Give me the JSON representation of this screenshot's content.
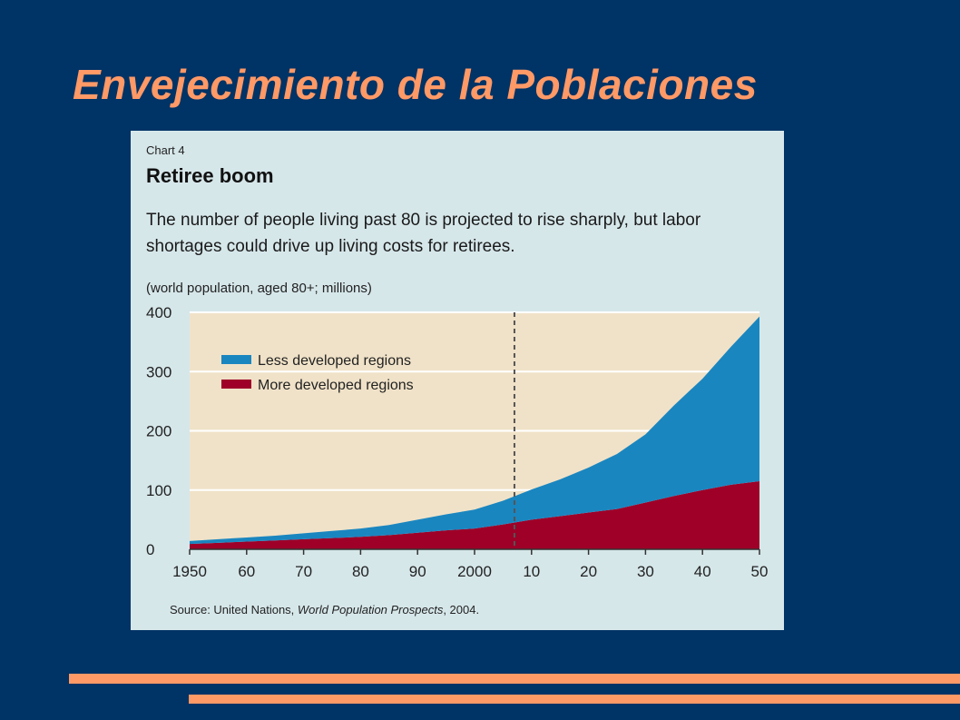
{
  "slide": {
    "title": "Envejecimiento de la Poblaciones"
  },
  "colors": {
    "background": "#003366",
    "title": "#ff9966",
    "accent_bars": "#ff9966"
  },
  "chart_data": {
    "type": "area",
    "overline": "Chart 4",
    "title": "Retiree boom",
    "subtitle": "The number of people living past 80 is projected to rise sharply, but labor shortages could drive up living costs for retirees.",
    "ylabel": "(world population, aged 80+; millions)",
    "source_prefix": "Source: United Nations, ",
    "source_italic": "World Population Prospects",
    "source_suffix": ", 2004.",
    "x": [
      1950,
      1955,
      1960,
      1965,
      1970,
      1975,
      1980,
      1985,
      1990,
      1995,
      2000,
      2005,
      2010,
      2015,
      2020,
      2025,
      2030,
      2035,
      2040,
      2045,
      2050
    ],
    "x_ticks": [
      1950,
      1960,
      1970,
      1980,
      1990,
      2000,
      2010,
      2020,
      2030,
      2040,
      2050
    ],
    "x_tick_labels": [
      "1950",
      "60",
      "70",
      "80",
      "90",
      "2000",
      "10",
      "20",
      "30",
      "40",
      "50"
    ],
    "y_ticks": [
      0,
      100,
      200,
      300,
      400
    ],
    "y_tick_labels": [
      "0",
      "100",
      "200",
      "300",
      "400"
    ],
    "ylim": [
      0,
      400
    ],
    "xlim": [
      1950,
      2050
    ],
    "stacked": true,
    "projection_start": 2007,
    "grid": true,
    "legend_position": "top-left",
    "series": [
      {
        "name": "More developed regions",
        "color": "#9e0028",
        "values": [
          9,
          11,
          13,
          15,
          17,
          19,
          21,
          24,
          28,
          32,
          35,
          42,
          50,
          56,
          62,
          68,
          79,
          90,
          100,
          109,
          115
        ]
      },
      {
        "name": "Less developed regions",
        "color": "#1a86c0",
        "values": [
          5,
          6,
          7,
          8,
          10,
          12,
          14,
          17,
          22,
          27,
          32,
          40,
          51,
          62,
          76,
          93,
          115,
          153,
          188,
          233,
          278
        ]
      }
    ],
    "plot_background": "#f0e2c8"
  }
}
